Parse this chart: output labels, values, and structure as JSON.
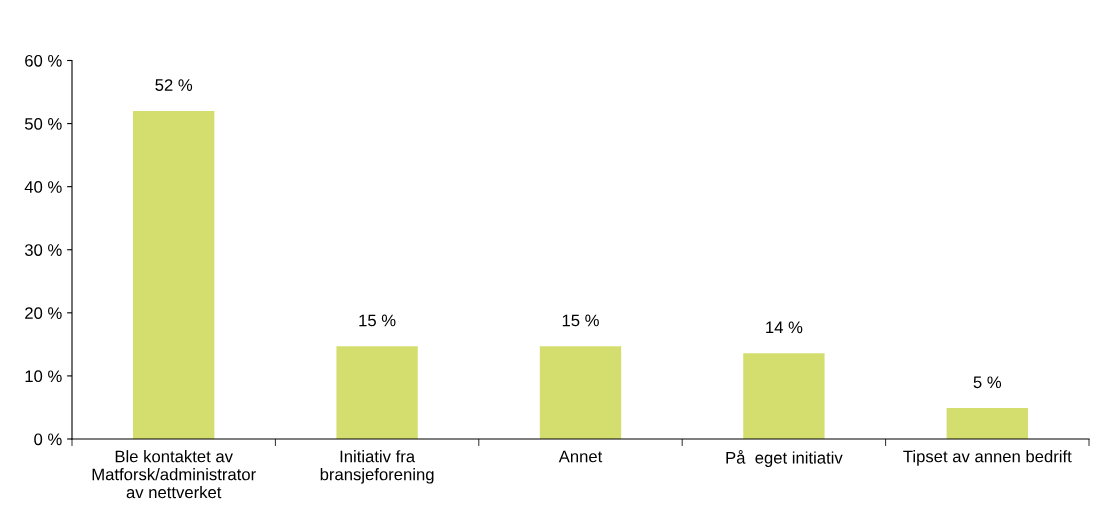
{
  "chart_data": {
    "type": "bar",
    "categories": [
      "Ble kontaktet av\nMatforsk/administrator\nav nettverket",
      "Initiativ fra\nbransjeforening",
      "Annet",
      "På  eget initiativ",
      "Tipset av annen bedrift"
    ],
    "values": [
      52,
      14.7,
      14.7,
      13.6,
      4.9
    ],
    "value_labels": [
      "52 %",
      "15 %",
      "15 %",
      "14 %",
      "5 %"
    ],
    "color": "#d4de6e",
    "ylim": [
      0,
      60
    ],
    "yticks": [
      {
        "value": 0,
        "label": "0 %"
      },
      {
        "value": 10,
        "label": "10 %"
      },
      {
        "value": 20,
        "label": "20 %"
      },
      {
        "value": 30,
        "label": "30 %"
      },
      {
        "value": 40,
        "label": "40 %"
      },
      {
        "value": 50,
        "label": "50 %"
      },
      {
        "value": 60,
        "label": "60 %"
      }
    ],
    "grid": false,
    "legend": false
  }
}
